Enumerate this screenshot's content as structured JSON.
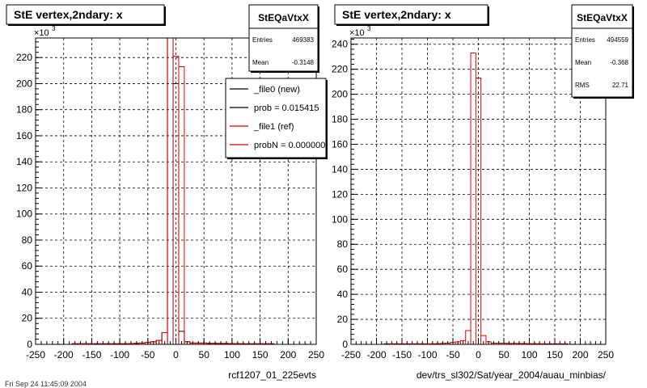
{
  "footer_timestamp": "Fri Sep 24 11:45:09 2004",
  "chart_data": [
    {
      "type": "histogram",
      "title": "StE  vertex,2ndary: x",
      "xlabel": "rcf1207_01_225evts",
      "y_multiplier": "×10",
      "y_multiplier_exp": "3",
      "xlim": [
        -250,
        250
      ],
      "ylim": [
        0,
        235
      ],
      "x_ticks": [
        -250,
        -200,
        -150,
        -100,
        -50,
        0,
        50,
        100,
        150,
        200,
        250
      ],
      "y_ticks": [
        0,
        20,
        40,
        60,
        80,
        100,
        120,
        140,
        160,
        180,
        200,
        220
      ],
      "grid": true,
      "stats": {
        "name": "StEQaVtxX",
        "rows": [
          {
            "label": "Entries",
            "value": "469383"
          },
          {
            "label": "Mean",
            "value": "-0.3148"
          }
        ]
      },
      "legend": {
        "placement": "top-right",
        "entries": [
          {
            "label": "_file0 (new)",
            "color": "#000000"
          },
          {
            "label": "prob = 0.015415",
            "color": "#000000"
          },
          {
            "label": "_file1 (ref)",
            "color": "#e00000"
          },
          {
            "label": "probN = 0.000000",
            "color": "#e00000"
          }
        ]
      },
      "bin_width": 10,
      "series": [
        {
          "name": "_file0 (new)",
          "color": "#000000",
          "bins": [
            {
              "x": -180,
              "y": 0.5
            },
            {
              "x": -170,
              "y": 0.5
            },
            {
              "x": -160,
              "y": 0.5
            },
            {
              "x": -150,
              "y": 0.5
            },
            {
              "x": -140,
              "y": 0.5
            },
            {
              "x": -130,
              "y": 0.5
            },
            {
              "x": -120,
              "y": 0.5
            },
            {
              "x": -110,
              "y": 0.5
            },
            {
              "x": -100,
              "y": 0.5
            },
            {
              "x": -90,
              "y": 0.5
            },
            {
              "x": -80,
              "y": 0.6
            },
            {
              "x": -70,
              "y": 0.8
            },
            {
              "x": -60,
              "y": 1
            },
            {
              "x": -50,
              "y": 1.5
            },
            {
              "x": -40,
              "y": 2
            },
            {
              "x": -30,
              "y": 3
            },
            {
              "x": -20,
              "y": 9
            },
            {
              "x": -10,
              "y": 235
            },
            {
              "x": 0,
              "y": 200
            },
            {
              "x": 10,
              "y": 10
            },
            {
              "x": 20,
              "y": 2
            },
            {
              "x": 30,
              "y": 1
            },
            {
              "x": 40,
              "y": 1
            },
            {
              "x": 50,
              "y": 1
            },
            {
              "x": 60,
              "y": 0.8
            },
            {
              "x": 70,
              "y": 0.8
            },
            {
              "x": 80,
              "y": 0.7
            },
            {
              "x": 90,
              "y": 0.7
            },
            {
              "x": 100,
              "y": 0.6
            },
            {
              "x": 110,
              "y": 0.6
            },
            {
              "x": 120,
              "y": 0.5
            },
            {
              "x": 130,
              "y": 0.5
            },
            {
              "x": 140,
              "y": 0.5
            },
            {
              "x": 150,
              "y": 0.5
            },
            {
              "x": 160,
              "y": 0.5
            },
            {
              "x": 170,
              "y": 0.5
            }
          ]
        },
        {
          "name": "_file1 (ref)",
          "color": "#e00000",
          "bins": [
            {
              "x": -180,
              "y": 0.5
            },
            {
              "x": -170,
              "y": 0.5
            },
            {
              "x": -160,
              "y": 0.5
            },
            {
              "x": -150,
              "y": 0.5
            },
            {
              "x": -140,
              "y": 0.5
            },
            {
              "x": -130,
              "y": 0.5
            },
            {
              "x": -120,
              "y": 0.5
            },
            {
              "x": -110,
              "y": 0.5
            },
            {
              "x": -100,
              "y": 0.5
            },
            {
              "x": -90,
              "y": 0.5
            },
            {
              "x": -80,
              "y": 0.6
            },
            {
              "x": -70,
              "y": 0.8
            },
            {
              "x": -60,
              "y": 1
            },
            {
              "x": -50,
              "y": 1.5
            },
            {
              "x": -40,
              "y": 2
            },
            {
              "x": -30,
              "y": 3
            },
            {
              "x": -20,
              "y": 9
            },
            {
              "x": -10,
              "y": 235
            },
            {
              "x": 0,
              "y": 221
            },
            {
              "x": 10,
              "y": 213
            },
            {
              "x": 20,
              "y": 2
            },
            {
              "x": 30,
              "y": 1
            },
            {
              "x": 40,
              "y": 1
            },
            {
              "x": 50,
              "y": 1
            },
            {
              "x": 60,
              "y": 0.8
            },
            {
              "x": 70,
              "y": 0.8
            },
            {
              "x": 80,
              "y": 0.7
            },
            {
              "x": 90,
              "y": 0.7
            },
            {
              "x": 100,
              "y": 0.6
            },
            {
              "x": 110,
              "y": 0.6
            },
            {
              "x": 120,
              "y": 0.5
            },
            {
              "x": 130,
              "y": 0.5
            },
            {
              "x": 140,
              "y": 0.5
            },
            {
              "x": 150,
              "y": 0.5
            },
            {
              "x": 160,
              "y": 0.5
            },
            {
              "x": 170,
              "y": 0.5
            }
          ]
        }
      ]
    },
    {
      "type": "histogram",
      "title": "StE  vertex,2ndary: x",
      "xlabel": "dev/trs_sl302/Sat/year_2004/auau_minbias/",
      "y_multiplier": "×10",
      "y_multiplier_exp": "3",
      "xlim": [
        -250,
        250
      ],
      "ylim": [
        0,
        245
      ],
      "x_ticks": [
        -250,
        -200,
        -150,
        -100,
        -50,
        0,
        50,
        100,
        150,
        200,
        250
      ],
      "y_ticks": [
        0,
        20,
        40,
        60,
        80,
        100,
        120,
        140,
        160,
        180,
        200,
        220,
        240
      ],
      "grid": true,
      "stats": {
        "name": "StEQaVtxX",
        "rows": [
          {
            "label": "Entries",
            "value": "494559"
          },
          {
            "label": "Mean",
            "value": "-0.368"
          },
          {
            "label": "RMS",
            "value": "22.71"
          }
        ]
      },
      "bin_width": 10,
      "series": [
        {
          "name": "",
          "color": "#e00000",
          "bins": [
            {
              "x": -180,
              "y": 0.5
            },
            {
              "x": -170,
              "y": 0.5
            },
            {
              "x": -160,
              "y": 0.5
            },
            {
              "x": -150,
              "y": 0.5
            },
            {
              "x": -140,
              "y": 0.5
            },
            {
              "x": -130,
              "y": 0.5
            },
            {
              "x": -120,
              "y": 0.5
            },
            {
              "x": -110,
              "y": 0.5
            },
            {
              "x": -100,
              "y": 0.5
            },
            {
              "x": -90,
              "y": 0.5
            },
            {
              "x": -80,
              "y": 0.6
            },
            {
              "x": -70,
              "y": 0.8
            },
            {
              "x": -60,
              "y": 1
            },
            {
              "x": -50,
              "y": 1.5
            },
            {
              "x": -40,
              "y": 2
            },
            {
              "x": -30,
              "y": 3
            },
            {
              "x": -20,
              "y": 11
            },
            {
              "x": -10,
              "y": 233
            },
            {
              "x": 0,
              "y": 213
            },
            {
              "x": 10,
              "y": 7
            },
            {
              "x": 20,
              "y": 2
            },
            {
              "x": 30,
              "y": 1
            },
            {
              "x": 40,
              "y": 1
            },
            {
              "x": 50,
              "y": 1
            },
            {
              "x": 60,
              "y": 0.8
            },
            {
              "x": 70,
              "y": 0.8
            },
            {
              "x": 80,
              "y": 0.7
            },
            {
              "x": 90,
              "y": 0.7
            },
            {
              "x": 100,
              "y": 0.6
            },
            {
              "x": 110,
              "y": 0.6
            },
            {
              "x": 120,
              "y": 0.5
            },
            {
              "x": 130,
              "y": 0.5
            },
            {
              "x": 140,
              "y": 0.5
            },
            {
              "x": 150,
              "y": 0.5
            },
            {
              "x": 160,
              "y": 0.5
            },
            {
              "x": 170,
              "y": 0.5
            }
          ]
        }
      ]
    }
  ]
}
